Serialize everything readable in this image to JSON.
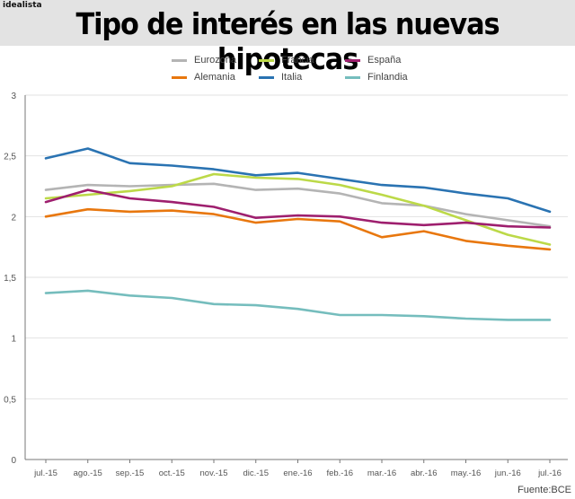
{
  "header": {
    "brand": "idealista",
    "title": "Tipo de interés en las nuevas hipotecas"
  },
  "source": "Fuente:BCE",
  "colors": {
    "Eurozona": "#b4b4b4",
    "Francia": "#bcd948",
    "España": "#9e1f6e",
    "Alemania": "#e8770e",
    "Italia": "#2a73b2",
    "Finlandia": "#75bdbd",
    "header_band": "#e3e3e3",
    "grid": "#e2e2e2",
    "axis": "#777777"
  },
  "chart_data": {
    "type": "line",
    "title": "Tipo de interés en las nuevas hipotecas",
    "xlabel": "",
    "ylabel": "",
    "categories": [
      "jul.-15",
      "ago.-15",
      "sep.-15",
      "oct.-15",
      "nov.-15",
      "dic.-15",
      "ene.-16",
      "feb.-16",
      "mar.-16",
      "abr.-16",
      "may.-16",
      "jun.-16",
      "jul.-16"
    ],
    "ylim": [
      0,
      3
    ],
    "yticks": [
      0,
      0.5,
      1,
      1.5,
      2,
      2.5,
      3
    ],
    "ytick_labels": [
      "0",
      "0,5",
      "1",
      "1,5",
      "2",
      "2,5",
      "3"
    ],
    "grid": "horizontal",
    "legend_position": "top-center",
    "series": [
      {
        "name": "Eurozona",
        "values": [
          2.22,
          2.26,
          2.25,
          2.26,
          2.27,
          2.22,
          2.23,
          2.19,
          2.11,
          2.09,
          2.02,
          1.97,
          1.92
        ]
      },
      {
        "name": "Francia",
        "values": [
          2.15,
          2.18,
          2.21,
          2.25,
          2.35,
          2.32,
          2.31,
          2.26,
          2.18,
          2.09,
          1.97,
          1.85,
          1.77
        ]
      },
      {
        "name": "España",
        "values": [
          2.12,
          2.22,
          2.15,
          2.12,
          2.08,
          1.99,
          2.01,
          2.0,
          1.95,
          1.93,
          1.95,
          1.92,
          1.91
        ]
      },
      {
        "name": "Alemania",
        "values": [
          2.0,
          2.06,
          2.04,
          2.05,
          2.02,
          1.95,
          1.98,
          1.96,
          1.83,
          1.88,
          1.8,
          1.76,
          1.73
        ]
      },
      {
        "name": "Italia",
        "values": [
          2.48,
          2.56,
          2.44,
          2.42,
          2.39,
          2.34,
          2.36,
          2.31,
          2.26,
          2.24,
          2.19,
          2.15,
          2.04
        ]
      },
      {
        "name": "Finlandia",
        "values": [
          1.37,
          1.39,
          1.35,
          1.33,
          1.28,
          1.27,
          1.24,
          1.19,
          1.19,
          1.18,
          1.16,
          1.15,
          1.15
        ]
      }
    ]
  }
}
